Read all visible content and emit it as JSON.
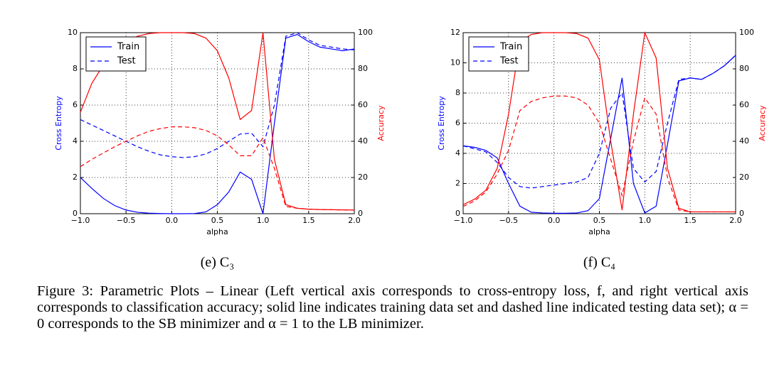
{
  "chart_data": [
    {
      "type": "line",
      "caption": "(e) C₃",
      "xlabel": "alpha",
      "ylabel": "Cross Entropy",
      "y2label": "Accuracy",
      "x": [
        -1,
        -0.875,
        -0.75,
        -0.625,
        -0.5,
        -0.375,
        -0.25,
        -0.125,
        0,
        0.125,
        0.25,
        0.375,
        0.5,
        0.625,
        0.75,
        0.875,
        1,
        1.125,
        1.25,
        1.375,
        1.5,
        1.625,
        1.75,
        1.875,
        2
      ],
      "series": [
        {
          "name": "Train",
          "color": "#0000ff",
          "dashed": false,
          "values": [
            2.0,
            1.4,
            0.85,
            0.45,
            0.2,
            0.08,
            0.03,
            0.01,
            0,
            0,
            0.01,
            0.1,
            0.5,
            1.2,
            2.3,
            1.9,
            0,
            5.0,
            9.7,
            9.9,
            9.5,
            9.2,
            9.1,
            9.0,
            9.1
          ]
        },
        {
          "name": "Test",
          "color": "#0000ff",
          "dashed": true,
          "values": [
            5.2,
            4.9,
            4.6,
            4.3,
            4.0,
            3.7,
            3.45,
            3.25,
            3.15,
            3.1,
            3.15,
            3.3,
            3.6,
            4.0,
            4.4,
            4.45,
            3.7,
            6.0,
            9.8,
            10.0,
            9.6,
            9.3,
            9.2,
            9.1,
            9.05
          ]
        },
        {
          "color": "#ff0000",
          "dashed": false,
          "axis": "y2",
          "values": [
            56,
            72,
            82,
            90,
            95,
            98,
            99.5,
            100,
            100,
            100,
            99.5,
            97,
            90,
            75,
            52,
            57,
            100,
            30,
            5,
            3,
            2.5,
            2.3,
            2.2,
            2.1,
            2.0
          ]
        },
        {
          "color": "#ff0000",
          "dashed": true,
          "axis": "y2",
          "values": [
            26,
            30,
            33.5,
            37,
            40,
            43,
            45.5,
            47,
            48,
            48,
            47.5,
            46,
            43,
            38,
            32,
            32,
            42,
            25,
            4,
            3,
            2.5,
            2.3,
            2.2,
            2.1,
            2.0
          ]
        }
      ],
      "xlim": [
        -1,
        2
      ],
      "xticks": [
        {
          "value": -1,
          "label": "−1.0"
        },
        {
          "value": -0.5,
          "label": "−0.5"
        },
        {
          "value": 0,
          "label": "0.0"
        },
        {
          "value": 0.5,
          "label": "0.5"
        },
        {
          "value": 1,
          "label": "1.0"
        },
        {
          "value": 1.5,
          "label": "1.5"
        },
        {
          "value": 2,
          "label": "2.0"
        }
      ],
      "ylim": [
        0,
        10
      ],
      "yticks": [
        0,
        2,
        4,
        6,
        8,
        10
      ],
      "y2lim": [
        0,
        100
      ],
      "y2ticks": [
        0,
        20,
        40,
        60,
        80,
        100
      ],
      "grid": true,
      "legend": "upper left"
    },
    {
      "type": "line",
      "caption": "(f) C₄",
      "xlabel": "alpha",
      "ylabel": "Cross Entropy",
      "y2label": "Accuracy",
      "x": [
        -1,
        -0.875,
        -0.75,
        -0.625,
        -0.5,
        -0.375,
        -0.25,
        -0.125,
        0,
        0.125,
        0.25,
        0.375,
        0.5,
        0.625,
        0.75,
        0.875,
        1,
        1.125,
        1.25,
        1.375,
        1.5,
        1.625,
        1.75,
        1.875,
        2
      ],
      "series": [
        {
          "name": "Train",
          "color": "#0000ff",
          "dashed": false,
          "values": [
            4.5,
            4.4,
            4.2,
            3.7,
            2.0,
            0.5,
            0.1,
            0.05,
            0.03,
            0.03,
            0.05,
            0.2,
            1.0,
            5.0,
            9.0,
            2.0,
            0.05,
            0.5,
            4.6,
            8.8,
            9.0,
            8.9,
            9.3,
            9.8,
            10.5
          ]
        },
        {
          "name": "Test",
          "color": "#0000ff",
          "dashed": true,
          "values": [
            4.5,
            4.3,
            4.1,
            3.4,
            2.4,
            1.8,
            1.7,
            1.8,
            1.9,
            2.0,
            2.1,
            2.4,
            4.0,
            7.0,
            8.0,
            3.0,
            2.1,
            2.8,
            6.0,
            8.9,
            9.0,
            8.9,
            9.3,
            9.8,
            10.5
          ]
        },
        {
          "color": "#ff0000",
          "dashed": false,
          "axis": "y2",
          "values": [
            5,
            8,
            13,
            25,
            55,
            95,
            99,
            100,
            100,
            100,
            99.5,
            97,
            85,
            40,
            2,
            55,
            100,
            86,
            25,
            3,
            1,
            1,
            1,
            1,
            1
          ]
        },
        {
          "color": "#ff0000",
          "dashed": true,
          "axis": "y2",
          "values": [
            4,
            7,
            12,
            22,
            35,
            57,
            62,
            64,
            65,
            65,
            64,
            60,
            50,
            30,
            10,
            40,
            64,
            55,
            20,
            2,
            1,
            1,
            1,
            1,
            1
          ]
        }
      ],
      "xlim": [
        -1,
        2
      ],
      "xticks": [
        {
          "value": -1,
          "label": "−1.0"
        },
        {
          "value": -0.5,
          "label": "−0.5"
        },
        {
          "value": 0,
          "label": "0.0"
        },
        {
          "value": 0.5,
          "label": "0.5"
        },
        {
          "value": 1,
          "label": "1.0"
        },
        {
          "value": 1.5,
          "label": "1.5"
        },
        {
          "value": 2,
          "label": "2.0"
        }
      ],
      "ylim": [
        0,
        12
      ],
      "yticks": [
        0,
        2,
        4,
        6,
        8,
        10,
        12
      ],
      "y2lim": [
        0,
        100
      ],
      "y2ticks": [
        0,
        20,
        40,
        60,
        80,
        100
      ],
      "grid": true,
      "legend": "upper left"
    }
  ],
  "figure_caption": "Figure 3: Parametric Plots – Linear (Left vertical axis corresponds to cross-entropy loss, f, and right vertical axis corresponds to classification accuracy; solid line indicates training data set and dashed line indicated testing data set); α = 0 corresponds to the SB minimizer and α = 1 to the LB minimizer."
}
